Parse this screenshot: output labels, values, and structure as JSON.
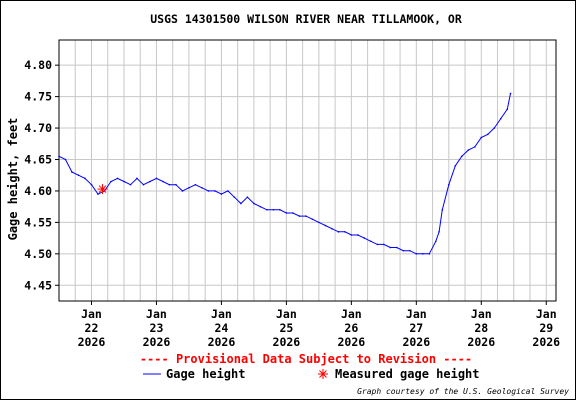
{
  "chart_data": {
    "type": "line",
    "title": "USGS 14301500 WILSON RIVER NEAR TILLAMOOK, OR",
    "ylabel": "Gage height, feet",
    "xlabel": "",
    "ylim": [
      4.425,
      4.84
    ],
    "xlim": [
      0,
      7.65
    ],
    "y_ticks": [
      4.45,
      4.5,
      4.55,
      4.6,
      4.65,
      4.7,
      4.75,
      4.8
    ],
    "x_ticks": [
      {
        "x": 0.5,
        "lines": [
          "Jan",
          "22",
          "2026"
        ]
      },
      {
        "x": 1.5,
        "lines": [
          "Jan",
          "23",
          "2026"
        ]
      },
      {
        "x": 2.5,
        "lines": [
          "Jan",
          "24",
          "2026"
        ]
      },
      {
        "x": 3.5,
        "lines": [
          "Jan",
          "25",
          "2026"
        ]
      },
      {
        "x": 4.5,
        "lines": [
          "Jan",
          "26",
          "2026"
        ]
      },
      {
        "x": 5.5,
        "lines": [
          "Jan",
          "27",
          "2026"
        ]
      },
      {
        "x": 6.5,
        "lines": [
          "Jan",
          "28",
          "2026"
        ]
      },
      {
        "x": 7.5,
        "lines": [
          "Jan",
          "29",
          "2026"
        ]
      }
    ],
    "grid": true,
    "series": [
      {
        "name": "Gage height",
        "color": "#0000ff",
        "x": [
          0.0,
          0.1,
          0.2,
          0.3,
          0.4,
          0.5,
          0.6,
          0.7,
          0.8,
          0.9,
          1.0,
          1.1,
          1.2,
          1.3,
          1.4,
          1.5,
          1.6,
          1.7,
          1.8,
          1.9,
          2.0,
          2.1,
          2.2,
          2.3,
          2.4,
          2.5,
          2.6,
          2.7,
          2.8,
          2.9,
          3.0,
          3.1,
          3.2,
          3.3,
          3.4,
          3.5,
          3.6,
          3.7,
          3.8,
          3.9,
          4.0,
          4.1,
          4.2,
          4.3,
          4.4,
          4.5,
          4.6,
          4.7,
          4.8,
          4.9,
          5.0,
          5.1,
          5.2,
          5.3,
          5.4,
          5.5,
          5.6,
          5.7,
          5.8,
          5.85,
          5.9,
          6.0,
          6.1,
          6.2,
          6.3,
          6.4,
          6.5,
          6.6,
          6.7,
          6.8,
          6.9,
          6.95
        ],
        "values": [
          4.655,
          4.65,
          4.63,
          4.625,
          4.62,
          4.61,
          4.595,
          4.6,
          4.615,
          4.62,
          4.615,
          4.61,
          4.62,
          4.61,
          4.615,
          4.62,
          4.615,
          4.61,
          4.61,
          4.6,
          4.605,
          4.61,
          4.605,
          4.6,
          4.6,
          4.595,
          4.6,
          4.59,
          4.58,
          4.59,
          4.58,
          4.575,
          4.57,
          4.57,
          4.57,
          4.565,
          4.565,
          4.56,
          4.56,
          4.555,
          4.55,
          4.545,
          4.54,
          4.535,
          4.535,
          4.53,
          4.53,
          4.525,
          4.52,
          4.515,
          4.515,
          4.51,
          4.51,
          4.505,
          4.505,
          4.5,
          4.5,
          4.5,
          4.52,
          4.535,
          4.57,
          4.61,
          4.64,
          4.655,
          4.665,
          4.67,
          4.685,
          4.69,
          4.7,
          4.715,
          4.73,
          4.755
        ]
      },
      {
        "name": "Measured gage height",
        "color": "#ff0000",
        "x": [
          0.67
        ],
        "values": [
          4.603
        ]
      }
    ],
    "annotations": [
      "---- Provisional Data Subject to Revision ----"
    ],
    "credit": "Graph courtesy of the U.S. Geological Survey",
    "legend_placement": "bottom"
  }
}
